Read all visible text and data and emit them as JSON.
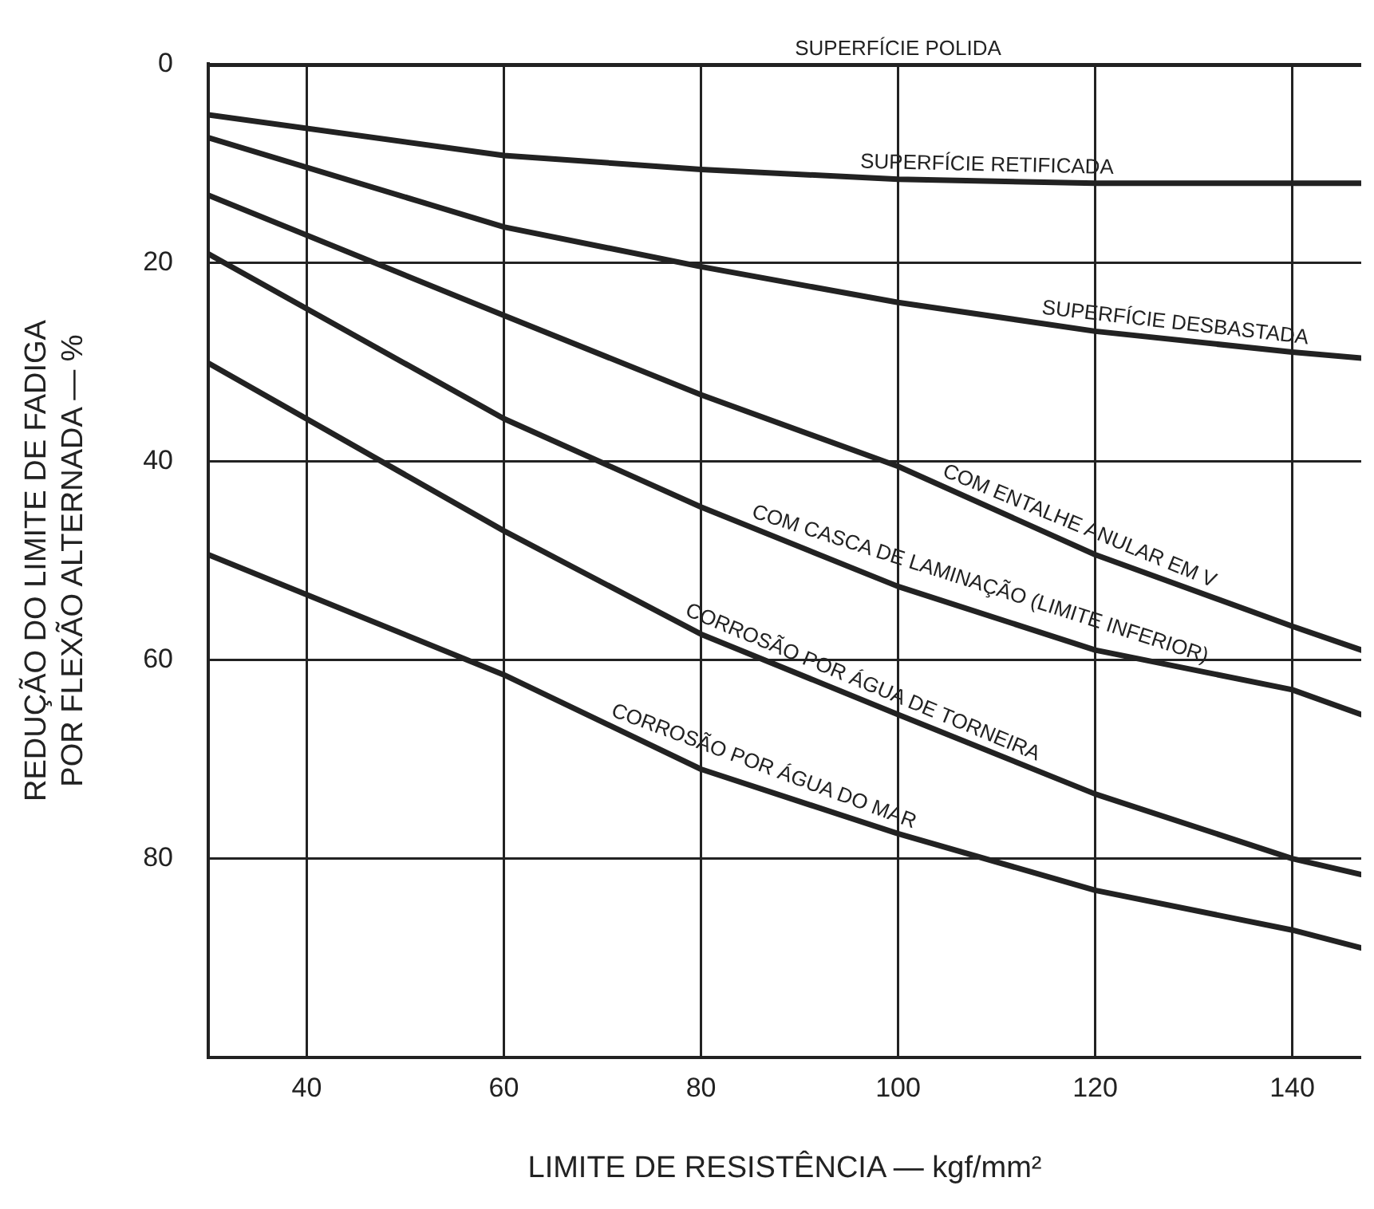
{
  "chart_data": {
    "type": "line",
    "xlabel": "LIMITE DE RESISTÊNCIA — kgf/mm²",
    "ylabel": "REDUÇÃO DO LIMITE DE FADIGA\nPOR FLEXÃO ALTERNADA — %",
    "xlim": [
      30,
      147
    ],
    "xticks": [
      40,
      60,
      80,
      100,
      120,
      140
    ],
    "ylim": [
      100,
      0
    ],
    "yticks": [
      0,
      20,
      40,
      60,
      80
    ],
    "grid": true,
    "legend": false,
    "marker": "none",
    "line_style": "solid",
    "x": [
      30,
      60,
      80,
      100,
      120,
      140,
      147
    ],
    "series": [
      {
        "name": "SUPERFÍCIE POLIDA",
        "color": "#222222",
        "values": [
          0,
          0,
          0,
          0,
          0,
          0,
          0
        ]
      },
      {
        "name": "SUPERFÍCIE RETIFICADA",
        "color": "#222222",
        "values": [
          5.1,
          9.2,
          10.6,
          11.6,
          12,
          12,
          12
        ]
      },
      {
        "name": "SUPERFÍCIE DESBASTADA",
        "color": "#222222",
        "values": [
          7.4,
          16.4,
          20.4,
          24,
          26.9,
          29,
          29.6
        ]
      },
      {
        "name": "COM ENTALHE ANULAR EM V",
        "color": "#222222",
        "values": [
          13.2,
          25.3,
          33.3,
          40.5,
          49.4,
          56.6,
          59
        ]
      },
      {
        "name": "COM CASCA DE LAMINAÇÃO (LIMITE INFERIOR)",
        "color": "#222222",
        "values": [
          19.1,
          35.7,
          44.6,
          52.6,
          59,
          63,
          65.5
        ]
      },
      {
        "name": "CORROSÃO POR ÁGUA DE TORNEIRA",
        "color": "#222222",
        "values": [
          30.1,
          47,
          57.4,
          65.5,
          73.5,
          80,
          81.6
        ]
      },
      {
        "name": "CORROSÃO POR ÁGUA DO MAR",
        "color": "#222222",
        "values": [
          49.4,
          61.5,
          71,
          77.5,
          83.2,
          87.2,
          89
        ]
      }
    ]
  }
}
